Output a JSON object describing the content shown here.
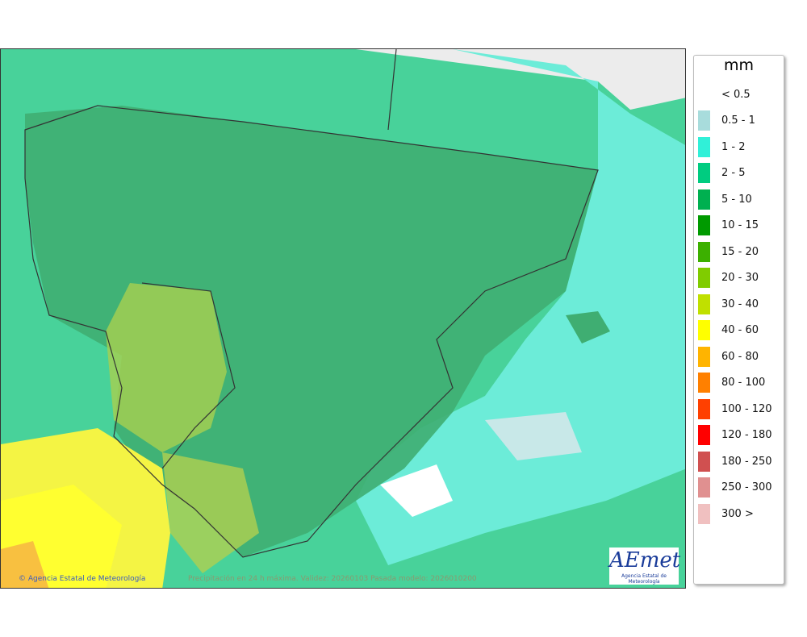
{
  "map": {
    "credit": "© Agencia Estatal de Meteorología",
    "caption": "Precipitación en 24 h máxima. Validez: 20260103 Pasada modelo: 2026010200",
    "logo": {
      "name": "AEMet",
      "subtitle": "Agencia Estatal de Meteorología"
    }
  },
  "legend": {
    "title": "mm",
    "items": [
      {
        "label": "< 0.5",
        "color": "#ffffff"
      },
      {
        "label": "0.5 - 1",
        "color": "#a8dcdc"
      },
      {
        "label": "1 - 2",
        "color": "#30f0d8"
      },
      {
        "label": "2 - 5",
        "color": "#00cc80"
      },
      {
        "label": "5 - 10",
        "color": "#00b050"
      },
      {
        "label": "10 - 15",
        "color": "#009a00"
      },
      {
        "label": "15 - 20",
        "color": "#3cb000"
      },
      {
        "label": "20 - 30",
        "color": "#80cc00"
      },
      {
        "label": "30 - 40",
        "color": "#c0e000"
      },
      {
        "label": "40 - 60",
        "color": "#ffff00"
      },
      {
        "label": "60 - 80",
        "color": "#ffb400"
      },
      {
        "label": "80 - 100",
        "color": "#ff8000"
      },
      {
        "label": "100 - 120",
        "color": "#ff4000"
      },
      {
        "label": "120 - 180",
        "color": "#ff0000"
      },
      {
        "label": "180 - 250",
        "color": "#d05050"
      },
      {
        "label": "250 - 300",
        "color": "#e09090"
      },
      {
        "label": "300 >",
        "color": "#f0c0c0"
      }
    ]
  }
}
